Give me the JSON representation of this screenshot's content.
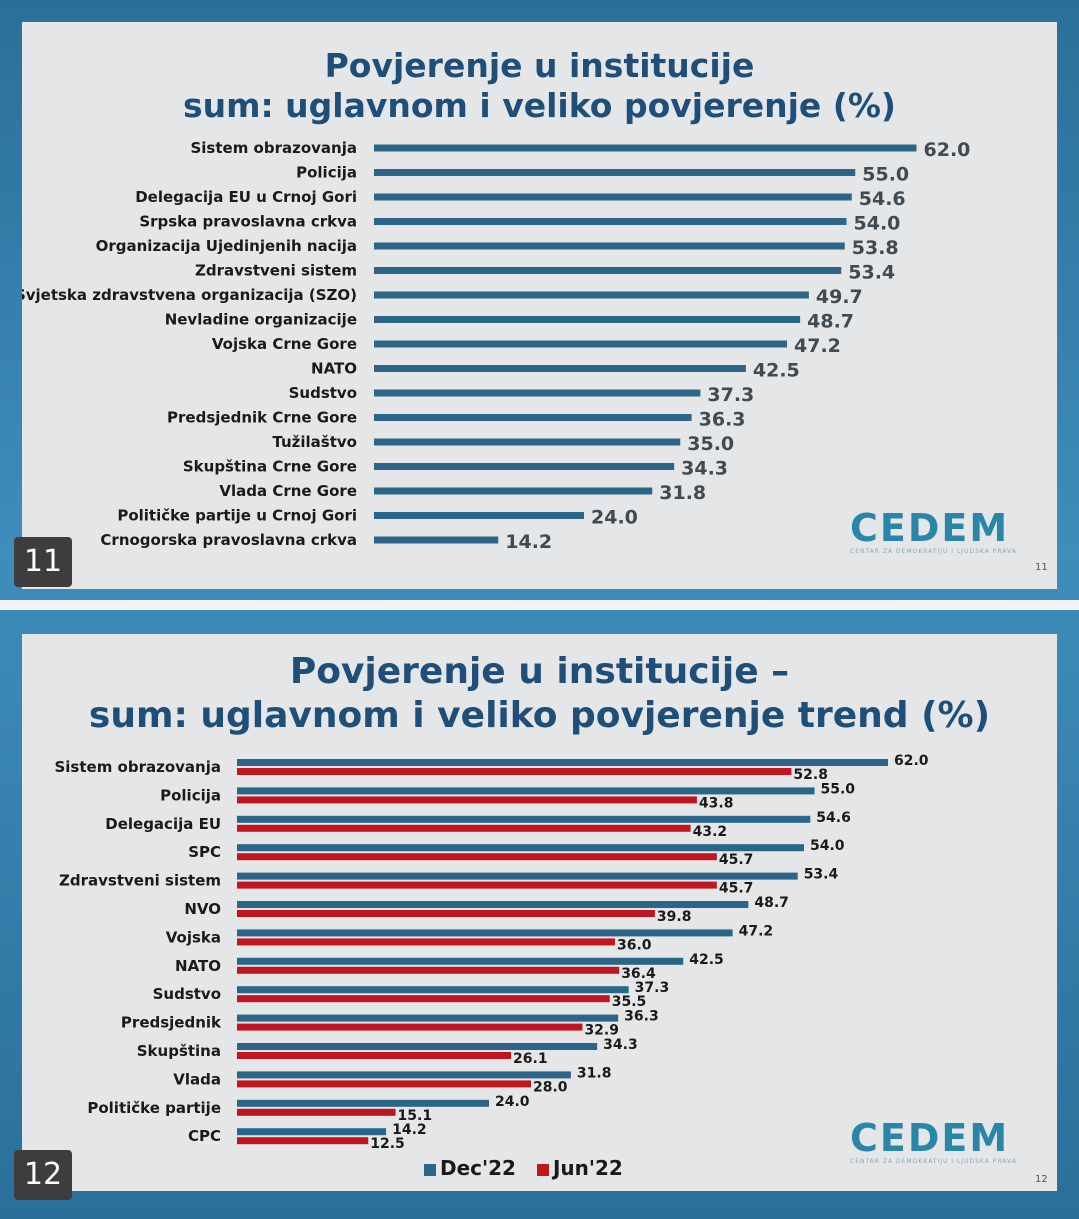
{
  "slide1": {
    "title_line1": "Povjerenje u institucije",
    "title_line2": "sum: uglavnom i veliko povjerenje (%)",
    "page_badge": "11",
    "page_small": "11",
    "logo": "CEDEM",
    "logo_sub": "CENTAR ZA DEMOKRATIJU I LJUDSKA PRAVA"
  },
  "slide2": {
    "title_line1": "Povjerenje u institucije –",
    "title_line2": "sum: uglavnom i veliko povjerenje trend (%)",
    "page_badge": "12",
    "page_small": "12",
    "logo": "CEDEM",
    "logo_sub": "CENTAR ZA DEMOKRATIJU I LJUDSKA PRAVA",
    "legend": [
      "Dec'22",
      "Jun'22"
    ]
  },
  "colors": {
    "dec": "#2b6688",
    "jun": "#c0161f",
    "bar1": "#2b6688"
  },
  "chart_data": [
    {
      "type": "bar",
      "orientation": "horizontal",
      "title": "Povjerenje u institucije sum: uglavnom i veliko povjerenje (%)",
      "categories": [
        "Sistem obrazovanja",
        "Policija",
        "Delegacija EU u Crnoj Gori",
        "Srpska pravoslavna crkva",
        "Organizacija Ujedinjenih nacija",
        "Zdravstveni sistem",
        "Svjetska zdravstvena organizacija (SZO)",
        "Nevladine organizacije",
        "Vojska Crne Gore",
        "NATO",
        "Sudstvo",
        "Predsjednik Crne Gore",
        "Tužilaštvo",
        "Skupština Crne Gore",
        "Vlada Crne Gore",
        "Političke partije u Crnoj Gori",
        "Crnogorska pravoslavna crkva"
      ],
      "values": [
        62.0,
        55.0,
        54.6,
        54.0,
        53.8,
        53.4,
        49.7,
        48.7,
        47.2,
        42.5,
        37.3,
        36.3,
        35.0,
        34.3,
        31.8,
        24.0,
        14.2
      ],
      "grid": false
    },
    {
      "type": "bar",
      "orientation": "horizontal",
      "title": "Povjerenje u institucije – sum: uglavnom i veliko povjerenje trend (%)",
      "categories": [
        "Sistem obrazovanja",
        "Policija",
        "Delegacija EU",
        "SPC",
        "Zdravstveni sistem",
        "NVO",
        "Vojska",
        "NATO",
        "Sudstvo",
        "Predsjednik",
        "Skupština",
        "Vlada",
        "Političke partije",
        "CPC"
      ],
      "series": [
        {
          "name": "Dec'22",
          "values": [
            62.0,
            55.0,
            54.6,
            54.0,
            53.4,
            48.7,
            47.2,
            42.5,
            37.3,
            36.3,
            34.3,
            31.8,
            24.0,
            14.2
          ]
        },
        {
          "name": "Jun'22",
          "values": [
            52.8,
            43.8,
            43.2,
            45.7,
            45.7,
            39.8,
            36.0,
            36.4,
            35.5,
            32.9,
            26.1,
            28.0,
            15.1,
            12.5
          ]
        }
      ],
      "legend": "bottom",
      "grid": false
    }
  ]
}
